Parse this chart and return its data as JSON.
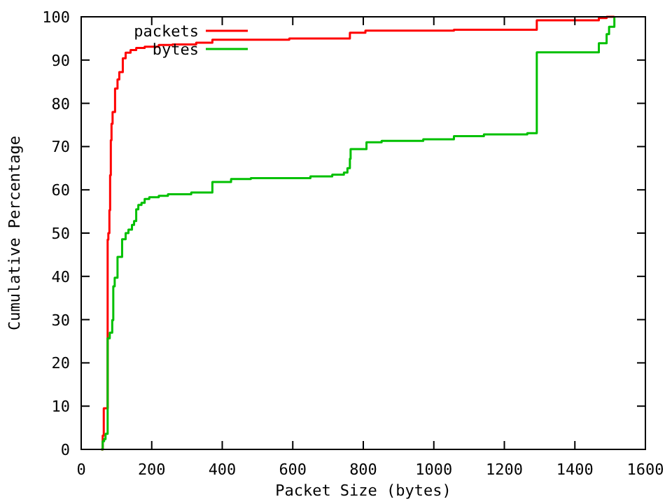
{
  "chart_data": {
    "type": "step",
    "xlabel": "Packet Size (bytes)",
    "ylabel": "Cumulative Percentage",
    "xlim": [
      0,
      1600
    ],
    "ylim": [
      0,
      100
    ],
    "xticks": [
      0,
      200,
      400,
      600,
      800,
      1000,
      1200,
      1400,
      1600
    ],
    "yticks": [
      0,
      10,
      20,
      30,
      40,
      50,
      60,
      70,
      80,
      90,
      100
    ],
    "legend": "top left",
    "grid": false,
    "series": [
      {
        "name": "packets",
        "color": "#ff0000",
        "x": [
          57,
          61,
          64,
          75,
          77,
          80,
          82,
          84,
          86,
          89,
          96,
          103,
          108,
          118,
          126,
          140,
          156,
          180,
          220,
          259,
          326,
          372,
          590,
          762,
          806,
          1057,
          1292,
          1468,
          1490,
          1512
        ],
        "values": [
          0,
          3.2,
          9.5,
          48.5,
          50,
          55.3,
          63.4,
          71.5,
          75.3,
          78,
          83.4,
          85.5,
          87.2,
          90.4,
          91.7,
          92.3,
          92.8,
          93.1,
          93.5,
          93.6,
          94,
          94.7,
          95,
          96.3,
          96.8,
          97,
          99.2,
          99.7,
          100,
          100
        ]
      },
      {
        "name": "bytes",
        "color": "#00c000",
        "x": [
          57,
          61,
          65,
          69,
          75,
          81,
          88,
          91,
          95,
          103,
          116,
          126,
          134,
          144,
          150,
          156,
          162,
          171,
          180,
          193,
          220,
          246,
          312,
          372,
          425,
          481,
          650,
          712,
          745,
          755,
          762,
          764,
          809,
          852,
          970,
          1057,
          1142,
          1265,
          1292,
          1468,
          1490,
          1497,
          1512
        ],
        "values": [
          0,
          1.9,
          2.4,
          3.6,
          25.7,
          27,
          29.9,
          37.7,
          39.7,
          44.5,
          48.6,
          50,
          50.8,
          51.9,
          52.8,
          55.5,
          56.5,
          57,
          57.9,
          58.3,
          58.6,
          59,
          59.4,
          61.8,
          62.5,
          62.7,
          63.1,
          63.5,
          64,
          65,
          67.2,
          69.4,
          71,
          71.3,
          71.7,
          72.4,
          72.8,
          73.1,
          91.8,
          93.9,
          96,
          97.7,
          100
        ]
      }
    ]
  }
}
